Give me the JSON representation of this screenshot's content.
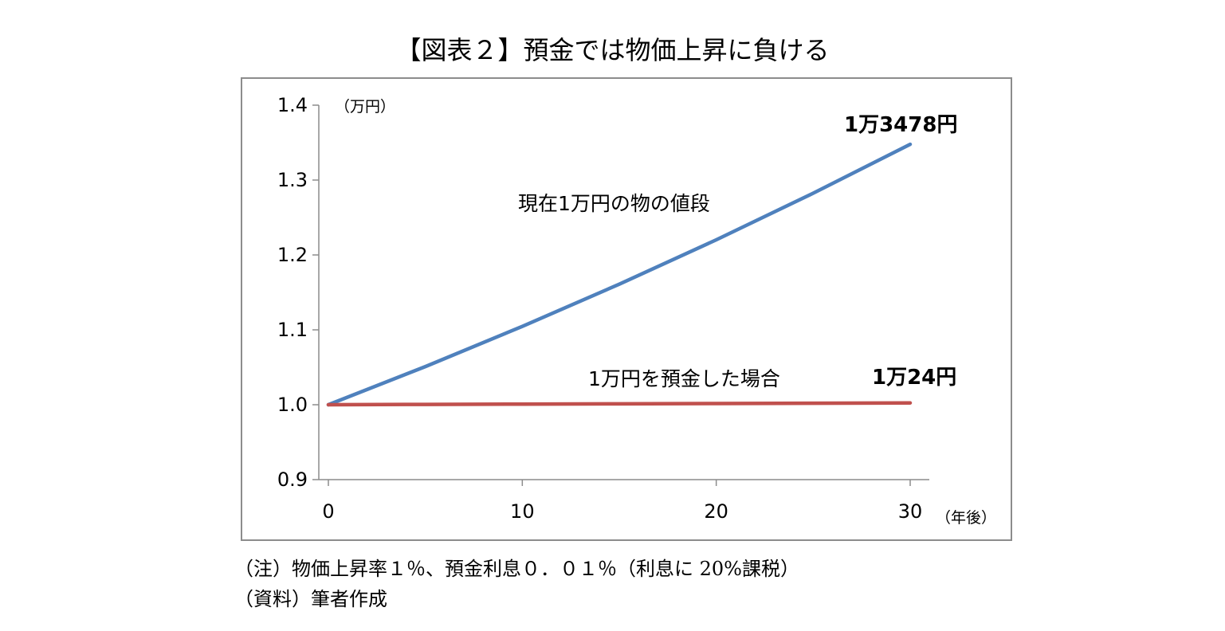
{
  "title": "【図表２】預金では物価上昇に負ける",
  "notes": {
    "note1": "（注）物価上昇率１％、預金利息０．０１％（利息に 20%課税）",
    "note2": "（資料）筆者作成"
  },
  "chart_data": {
    "type": "line",
    "y_unit_label": "（万円）",
    "x_unit_label": "（年後）",
    "ylim": [
      0.9,
      1.4
    ],
    "xlim": [
      0,
      30
    ],
    "y_ticks": [
      "0.9",
      "1.0",
      "1.1",
      "1.2",
      "1.3",
      "1.4"
    ],
    "x_ticks": [
      "0",
      "10",
      "20",
      "30"
    ],
    "grid": false,
    "series": [
      {
        "name": "現在1万円の物の値段",
        "color": "#4f81bd",
        "end_label": "1万3478円",
        "x": [
          0,
          5,
          10,
          15,
          20,
          25,
          30
        ],
        "values": [
          1.0,
          1.051,
          1.1046,
          1.161,
          1.2202,
          1.2824,
          1.3478
        ]
      },
      {
        "name": "1万円を預金した場合",
        "color": "#c0504d",
        "end_label": "1万24円",
        "x": [
          0,
          5,
          10,
          15,
          20,
          25,
          30
        ],
        "values": [
          1.0,
          1.0004,
          1.0008,
          1.0012,
          1.0016,
          1.002,
          1.0024
        ]
      }
    ]
  }
}
